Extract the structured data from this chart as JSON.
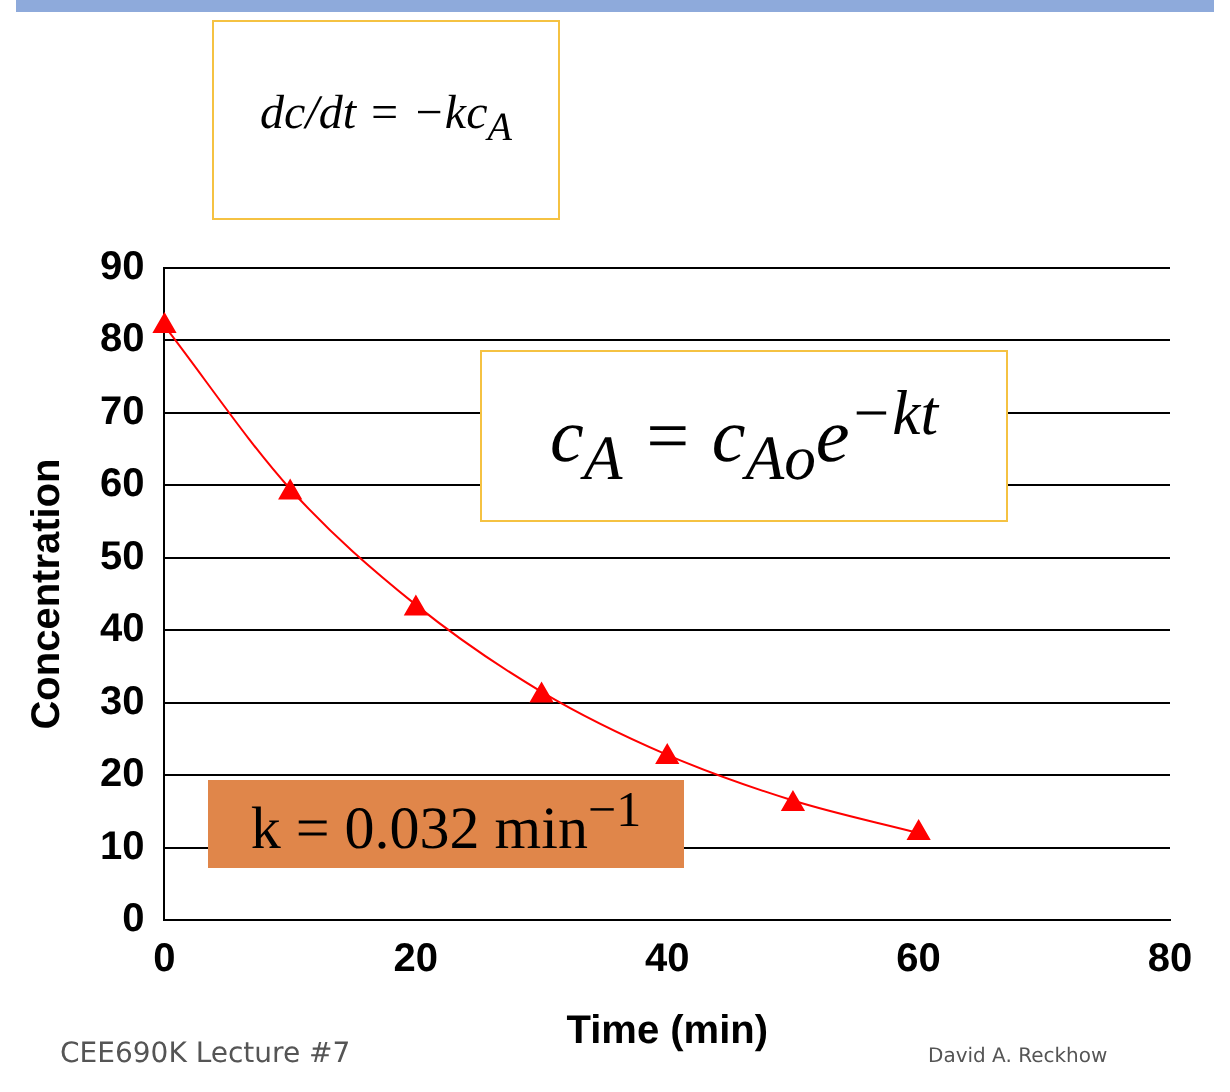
{
  "chart_data": {
    "type": "scatter",
    "xlabel": "Time (min)",
    "ylabel": "Concentration",
    "x": [
      0,
      10,
      20,
      30,
      40,
      50,
      60
    ],
    "series": [
      {
        "color": "#ff0000",
        "values": [
          82,
          59,
          43,
          31,
          22.5,
          16,
          12
        ]
      },
      {
        "type": "line",
        "marker": "none",
        "color": "#ff0000",
        "values": [
          82,
          59.5,
          43.5,
          31.5,
          22.8,
          16.5,
          12
        ]
      }
    ],
    "xlim": [
      0,
      80
    ],
    "xticks": [
      0,
      20,
      40,
      60,
      80
    ],
    "ylim": [
      0,
      90
    ],
    "yticks": [
      0,
      10,
      20,
      30,
      40,
      50,
      60,
      70,
      80,
      90
    ],
    "grid": "y",
    "legend": false,
    "marker": "triangle",
    "line_style": "solid",
    "annotations": [
      "dc/dt = −kc$_{A}$",
      "c$_{A}$ = c$_{Ao}$e$^{−kt}$",
      "k = 0.032 min$^{−1}$",
      "CEE690K  Lecture #7",
      "David A. Reckhow"
    ]
  }
}
